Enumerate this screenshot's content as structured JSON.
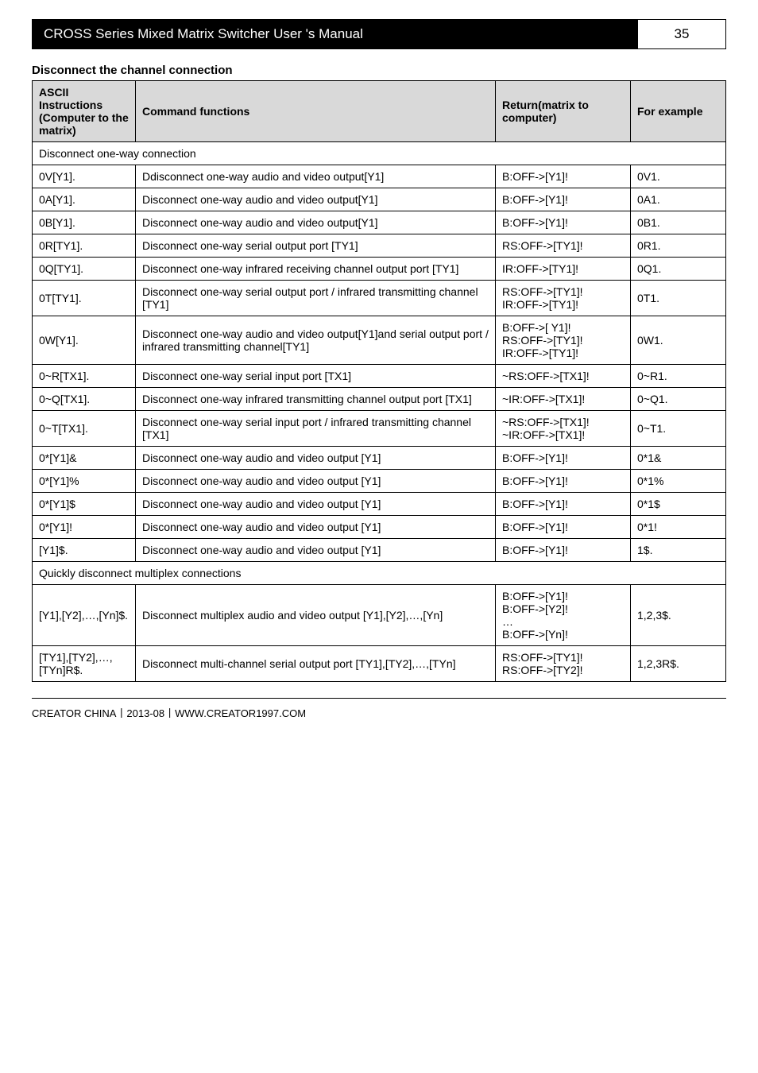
{
  "header": {
    "title": "CROSS Series Mixed Matrix Switcher User 's Manual",
    "page": "35"
  },
  "section_title": "Disconnect the channel connection",
  "columns": {
    "c1": "ASCII Instructions (Computer to the matrix)",
    "c2": "Command functions",
    "c3": "Return(matrix to computer)",
    "c4": "For example"
  },
  "group1": "Disconnect one-way connection",
  "rows1": [
    {
      "a": "0V[Y1].",
      "b": "Ddisconnect one-way audio and video output[Y1]",
      "c": "B:OFF->[Y1]!",
      "d": "0V1."
    },
    {
      "a": "0A[Y1].",
      "b": "Disconnect one-way audio and video output[Y1]",
      "c": "B:OFF->[Y1]!",
      "d": "0A1."
    },
    {
      "a": "0B[Y1].",
      "b": "Disconnect one-way audio and video output[Y1]",
      "c": "B:OFF->[Y1]!",
      "d": "0B1."
    },
    {
      "a": "0R[TY1].",
      "b": "Disconnect one-way serial output port [TY1]",
      "c": "RS:OFF->[TY1]!",
      "d": "0R1."
    },
    {
      "a": "0Q[TY1].",
      "b": "Disconnect one-way infrared receiving channel output port [TY1]",
      "c": "IR:OFF->[TY1]!",
      "d": "0Q1."
    },
    {
      "a": "0T[TY1].",
      "b": "Disconnect one-way serial output port / infrared transmitting channel [TY1]",
      "c": "RS:OFF->[TY1]!\nIR:OFF->[TY1]!",
      "d": "0T1."
    },
    {
      "a": "0W[Y1].",
      "b": "Disconnect one-way audio and video output[Y1]and serial output port / infrared transmitting channel[TY1]",
      "c": "B:OFF->[ Y1]!\nRS:OFF->[TY1]!\nIR:OFF->[TY1]!",
      "d": "0W1."
    },
    {
      "a": "0~R[TX1].",
      "b": "Disconnect one-way serial input port [TX1]",
      "c": "~RS:OFF->[TX1]!",
      "d": "0~R1."
    },
    {
      "a": "0~Q[TX1].",
      "b": "Disconnect one-way infrared transmitting channel output port [TX1]",
      "c": "~IR:OFF->[TX1]!",
      "d": "0~Q1."
    },
    {
      "a": "0~T[TX1].",
      "b": "Disconnect one-way serial input port / infrared transmitting channel [TX1]",
      "c": "~RS:OFF->[TX1]!\n~IR:OFF->[TX1]!",
      "d": "0~T1."
    },
    {
      "a": "0*[Y1]&",
      "b": "Disconnect one-way audio and video output [Y1]",
      "c": "B:OFF->[Y1]!",
      "d": "0*1&"
    },
    {
      "a": "0*[Y1]%",
      "b": "Disconnect one-way audio and video output [Y1]",
      "c": "B:OFF->[Y1]!",
      "d": "0*1%"
    },
    {
      "a": "0*[Y1]$",
      "b": "Disconnect one-way audio and video output [Y1]",
      "c": "B:OFF->[Y1]!",
      "d": "0*1$"
    },
    {
      "a": "0*[Y1]!",
      "b": "Disconnect one-way audio and video output [Y1]",
      "c": "B:OFF->[Y1]!",
      "d": "0*1!"
    },
    {
      "a": "[Y1]$.",
      "b": "Disconnect one-way audio and video output [Y1]",
      "c": "B:OFF->[Y1]!",
      "d": "1$."
    }
  ],
  "group2": "Quickly disconnect multiplex connections",
  "rows2": [
    {
      "a": "[Y1],[Y2],…,[Yn]$.",
      "b": "Disconnect multiplex audio and video output [Y1],[Y2],…,[Yn]",
      "c": "B:OFF->[Y1]!\nB:OFF->[Y2]!\n…\nB:OFF->[Yn]!",
      "d": "1,2,3$."
    },
    {
      "a": "[TY1],[TY2],…,[TYn]R$.",
      "b": "Disconnect multi-channel serial output port [TY1],[TY2],…,[TYn]",
      "c": "RS:OFF->[TY1]!\nRS:OFF->[TY2]!",
      "d": "1,2,3R$."
    }
  ],
  "footer": "CREATOR CHINA丨2013-08丨WWW.CREATOR1997.COM"
}
